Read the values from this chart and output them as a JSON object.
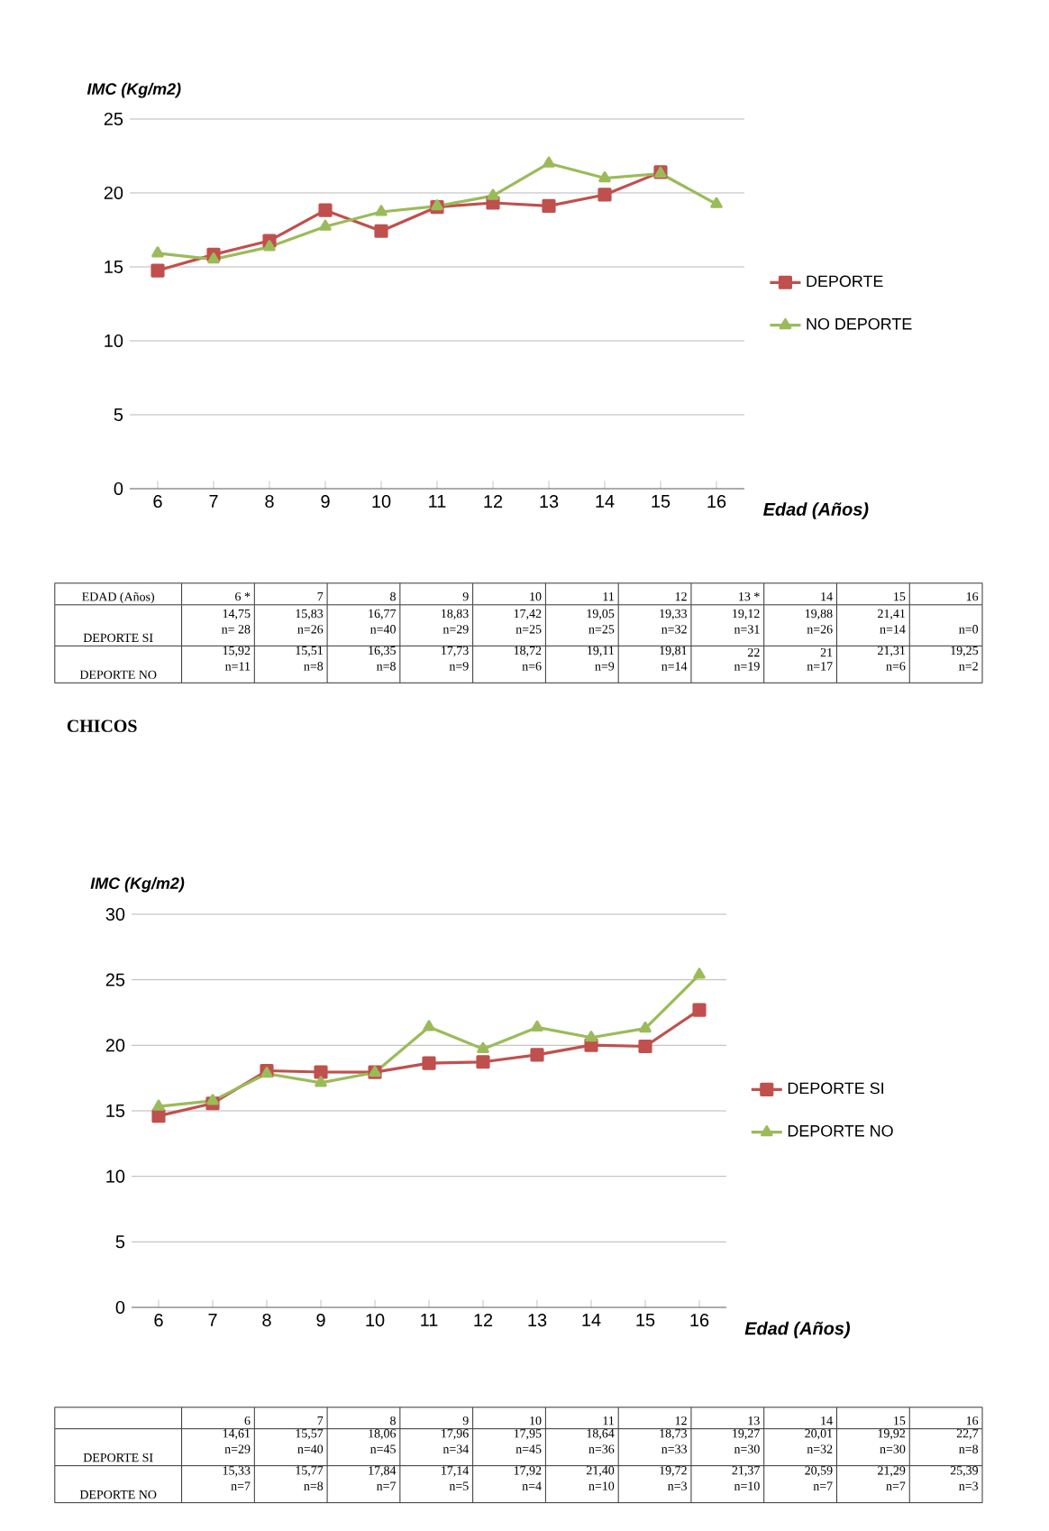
{
  "chart_data": [
    {
      "type": "line",
      "ylabel": "IMC (Kg/m2)",
      "xlabel": "Edad (Años)",
      "categories": [
        "6",
        "7",
        "8",
        "9",
        "10",
        "11",
        "12",
        "13",
        "14",
        "15",
        "16"
      ],
      "ylim": [
        0,
        25
      ],
      "yticks": [
        0,
        5,
        10,
        15,
        20,
        25
      ],
      "grid": "y",
      "legend": "right",
      "series": [
        {
          "name": "DEPORTE",
          "color": "#c0504d",
          "marker": "square",
          "values": [
            14.75,
            15.83,
            16.77,
            18.83,
            17.42,
            19.05,
            19.33,
            19.12,
            19.88,
            21.41,
            null
          ]
        },
        {
          "name": "NO DEPORTE",
          "color": "#9bbb59",
          "marker": "triangle",
          "values": [
            15.92,
            15.51,
            16.35,
            17.73,
            18.72,
            19.11,
            19.81,
            22,
            21,
            21.31,
            19.25
          ]
        }
      ],
      "annotations": [
        "EDAD (Años)",
        "6 *",
        "7",
        "8",
        "9",
        "10",
        "11",
        "12",
        "13 *",
        "14",
        "15",
        "16",
        "DEPORTE SI",
        "14,75",
        "n= 28",
        "15,83",
        "n=26",
        "16,77",
        "n=40",
        "18,83",
        "n=29",
        "17,42",
        "n=25",
        "19,05",
        "n=25",
        "19,33",
        "n=32",
        "19,12",
        "n=31",
        "19,88",
        "n=26",
        "21,41",
        "n=14",
        "n=0",
        "DEPORTE NO",
        "15,92",
        "n=11",
        "15,51",
        "n=8",
        "16,35",
        "n=8",
        "17,73",
        "n=9",
        "18,72",
        "n=6",
        "19,11",
        "n=9",
        "19,81",
        "n=14",
        "22",
        "n=19",
        "21",
        "n=17",
        "21,31",
        "n=6",
        "19,25",
        "n=2"
      ]
    },
    {
      "type": "line",
      "title": "CHICOS",
      "ylabel": "IMC (Kg/m2)",
      "xlabel": "Edad (Años)",
      "categories": [
        "6",
        "7",
        "8",
        "9",
        "10",
        "11",
        "12",
        "13",
        "14",
        "15",
        "16"
      ],
      "ylim": [
        0,
        30
      ],
      "yticks": [
        0,
        5,
        10,
        15,
        20,
        25,
        30
      ],
      "grid": "y",
      "legend": "right",
      "series": [
        {
          "name": "DEPORTE SI",
          "color": "#c0504d",
          "marker": "square",
          "values": [
            14.61,
            15.57,
            18.06,
            17.96,
            17.95,
            18.64,
            18.73,
            19.27,
            20.01,
            19.92,
            22.7
          ]
        },
        {
          "name": "DEPORTE NO",
          "color": "#9bbb59",
          "marker": "triangle",
          "values": [
            15.33,
            15.77,
            17.84,
            17.14,
            17.92,
            21.4,
            19.72,
            21.37,
            20.59,
            21.29,
            25.39
          ]
        }
      ],
      "annotations": [
        "6",
        "7",
        "8",
        "9",
        "10",
        "11",
        "12",
        "13",
        "14",
        "15",
        "16",
        "DEPORTE SI",
        "14,61",
        "n=29",
        "15,57",
        "n=40",
        "18,06",
        "n=45",
        "17,96",
        "n=34",
        "17,95",
        "n=45",
        "18,64",
        "n=36",
        "18,73",
        "n=33",
        "19,27",
        "n=30",
        "20,01",
        "n=32",
        "19,92",
        "n=30",
        "22,7",
        "n=8",
        "DEPORTE NO",
        "15,33",
        "n=7",
        "15,77",
        "n=8",
        "17,84",
        "n=7",
        "17,14",
        "n=5",
        "17,92",
        "n=4",
        "21,40",
        "n=10",
        "19,72",
        "n=3",
        "21,37",
        "n=10",
        "20,59",
        "n=7",
        "21,29",
        "n=7",
        "25,39",
        "n=3"
      ]
    }
  ]
}
